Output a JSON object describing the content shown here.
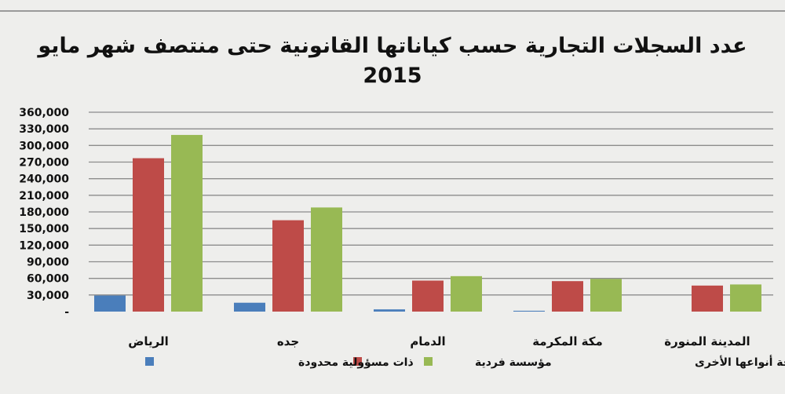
{
  "chart_data": {
    "type": "bar",
    "title": "عدد السجلات التجارية حسب كياناتها القانونية  حتى منتصف شهر مايو",
    "subtitle": "2015",
    "categories": [
      "الرياض",
      "جده",
      "الدمام",
      "مكة المكرمة",
      "المدينة المنورة"
    ],
    "series": [
      {
        "name": "ذات مسؤولية محدودة",
        "color": "#4a7ebb",
        "values": [
          29000,
          16000,
          4000,
          1500,
          0
        ]
      },
      {
        "name": "مؤسسة فردية",
        "color": "#be4b48",
        "values": [
          277000,
          165000,
          56000,
          55000,
          47000
        ]
      },
      {
        "name": "إجمالي عدد السجلات بكافة أنواعها الأخرى",
        "color": "#98b954",
        "values": [
          319000,
          188000,
          64000,
          59000,
          49000
        ]
      }
    ],
    "yticks": [
      "-",
      "30,000",
      "60,000",
      "90,000",
      "120,000",
      "150,000",
      "180,000",
      "210,000",
      "240,000",
      "270,000",
      "300,000",
      "330,000",
      "360,000"
    ],
    "ylim": [
      0,
      360000
    ],
    "ystep": 30000,
    "grid": true,
    "legend_position": "bottom"
  }
}
